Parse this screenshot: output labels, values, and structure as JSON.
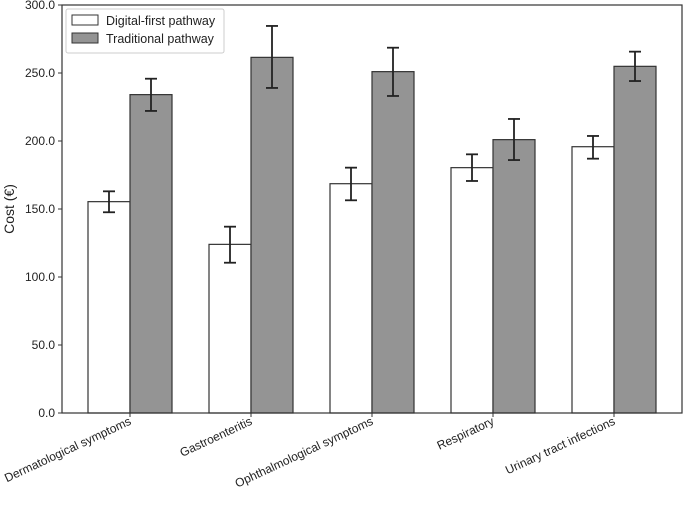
{
  "chart_data": {
    "type": "bar",
    "title": "",
    "xlabel": "",
    "ylabel": "Cost (€)",
    "ylim": [
      0,
      300
    ],
    "yticks": [
      "0.0",
      "50.0",
      "100.0",
      "150.0",
      "200.0",
      "250.0",
      "300.0"
    ],
    "grid": false,
    "legend_position": "top-left",
    "categories": [
      "Dermatological symptoms",
      "Gastroenteritis",
      "Ophthalmological symptoms",
      "Respiratory",
      "Urinary tract infections"
    ],
    "series": [
      {
        "name": "Digital-first pathway",
        "color": "#ffffff",
        "values": [
          155.4,
          124.0,
          168.6,
          180.4,
          195.8
        ],
        "error_low": [
          147.6,
          110.5,
          156.4,
          170.6,
          187.0
        ],
        "error_high": [
          163.0,
          137.0,
          180.4,
          190.2,
          203.7
        ]
      },
      {
        "name": "Traditional pathway",
        "color": "#949494",
        "values": [
          234.1,
          261.5,
          251.0,
          201.0,
          254.9
        ],
        "error_low": [
          222.1,
          239.0,
          233.1,
          186.0,
          244.1
        ],
        "error_high": [
          245.8,
          284.6,
          268.6,
          216.2,
          265.7
        ]
      }
    ]
  }
}
